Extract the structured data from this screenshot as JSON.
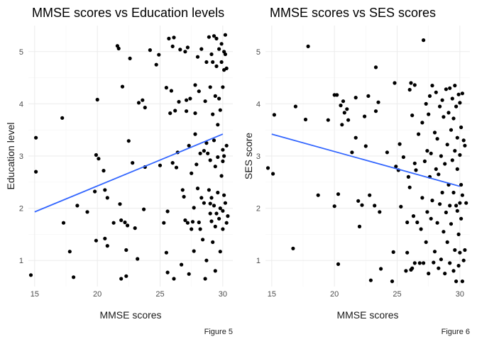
{
  "chart_data": [
    {
      "type": "scatter",
      "title": "MMSE scores vs Education levels",
      "xlabel": "MMSE scores",
      "ylabel": "Education level",
      "caption": "Figure 5",
      "xlim": [
        14.5,
        30.8
      ],
      "ylim": [
        0.5,
        5.5
      ],
      "xticks": [
        "15",
        "20",
        "25",
        "30"
      ],
      "yticks": [
        "1",
        "2",
        "3",
        "4",
        "5"
      ],
      "grid": true,
      "point_color": "#000000",
      "trend_color": "#3366ff",
      "trend_line": {
        "x": [
          15,
          30
        ],
        "y": [
          1.93,
          3.42
        ]
      },
      "points": [
        [
          14.7,
          0.72
        ],
        [
          15.1,
          3.35
        ],
        [
          15.1,
          2.7
        ],
        [
          17.2,
          3.73
        ],
        [
          17.3,
          1.72
        ],
        [
          17.8,
          1.17
        ],
        [
          18.1,
          0.68
        ],
        [
          18.4,
          2.05
        ],
        [
          19.2,
          1.93
        ],
        [
          19.8,
          2.32
        ],
        [
          19.9,
          1.38
        ],
        [
          19.9,
          3.02
        ],
        [
          20.0,
          4.08
        ],
        [
          20.1,
          2.95
        ],
        [
          20.5,
          2.72
        ],
        [
          20.6,
          2.35
        ],
        [
          20.6,
          1.42
        ],
        [
          20.8,
          2.2
        ],
        [
          20.8,
          1.28
        ],
        [
          21.3,
          1.72
        ],
        [
          21.6,
          5.11
        ],
        [
          21.7,
          5.06
        ],
        [
          21.8,
          2.08
        ],
        [
          21.9,
          1.77
        ],
        [
          21.9,
          0.65
        ],
        [
          22.0,
          4.33
        ],
        [
          22.2,
          1.73
        ],
        [
          22.3,
          1.2
        ],
        [
          22.3,
          0.7
        ],
        [
          22.4,
          1.67
        ],
        [
          22.5,
          3.29
        ],
        [
          22.6,
          4.87
        ],
        [
          22.8,
          2.87
        ],
        [
          23.0,
          1.62
        ],
        [
          23.2,
          1.03
        ],
        [
          23.3,
          4.02
        ],
        [
          23.6,
          4.07
        ],
        [
          23.7,
          1.98
        ],
        [
          23.8,
          3.93
        ],
        [
          23.8,
          2.79
        ],
        [
          24.2,
          5.03
        ],
        [
          24.7,
          4.75
        ],
        [
          24.9,
          4.94
        ],
        [
          25.0,
          2.82
        ],
        [
          25.3,
          1.72
        ],
        [
          25.5,
          1.15
        ],
        [
          25.5,
          4.31
        ],
        [
          25.6,
          1.94
        ],
        [
          25.6,
          0.77
        ],
        [
          25.7,
          5.25
        ],
        [
          25.8,
          3.82
        ],
        [
          25.9,
          4.25
        ],
        [
          26.0,
          5.1
        ],
        [
          26.0,
          2.87
        ],
        [
          26.1,
          0.65
        ],
        [
          26.1,
          5.27
        ],
        [
          26.2,
          3.87
        ],
        [
          26.3,
          2.78
        ],
        [
          26.4,
          3.07
        ],
        [
          26.5,
          4.04
        ],
        [
          26.6,
          5.04
        ],
        [
          26.7,
          0.92
        ],
        [
          26.8,
          2.35
        ],
        [
          26.9,
          2.22
        ],
        [
          27.0,
          1.77
        ],
        [
          27.0,
          5.0
        ],
        [
          27.1,
          4.07
        ],
        [
          27.1,
          3.86
        ],
        [
          27.2,
          1.72
        ],
        [
          27.2,
          5.08
        ],
        [
          27.3,
          0.74
        ],
        [
          27.3,
          3.2
        ],
        [
          27.4,
          4.1
        ],
        [
          27.5,
          1.6
        ],
        [
          27.5,
          2.67
        ],
        [
          27.6,
          1.74
        ],
        [
          27.7,
          1.18
        ],
        [
          27.7,
          2.01
        ],
        [
          27.8,
          3.42
        ],
        [
          27.8,
          3.82
        ],
        [
          27.8,
          4.36
        ],
        [
          27.9,
          2.84
        ],
        [
          28.0,
          2.38
        ],
        [
          28.0,
          4.9
        ],
        [
          28.1,
          1.73
        ],
        [
          28.1,
          4.24
        ],
        [
          28.2,
          3.05
        ],
        [
          28.2,
          1.6
        ],
        [
          28.3,
          2.2
        ],
        [
          28.3,
          5.05
        ],
        [
          28.4,
          1.4
        ],
        [
          28.5,
          2.1
        ],
        [
          28.5,
          3.1
        ],
        [
          28.6,
          4.05
        ],
        [
          28.6,
          0.65
        ],
        [
          28.7,
          4.8
        ],
        [
          28.7,
          1.0
        ],
        [
          28.7,
          3.25
        ],
        [
          28.8,
          3.05
        ],
        [
          28.9,
          2.35
        ],
        [
          28.9,
          5.28
        ],
        [
          29.0,
          1.9
        ],
        [
          29.0,
          4.32
        ],
        [
          29.0,
          2.09
        ],
        [
          29.0,
          2.92
        ],
        [
          29.1,
          1.75
        ],
        [
          29.1,
          4.95
        ],
        [
          29.1,
          2.2
        ],
        [
          29.2,
          4.8
        ],
        [
          29.2,
          3.8
        ],
        [
          29.2,
          1.35
        ],
        [
          29.3,
          5.3
        ],
        [
          29.3,
          3.3
        ],
        [
          29.3,
          2.05
        ],
        [
          29.4,
          1.65
        ],
        [
          29.4,
          2.8
        ],
        [
          29.4,
          4.15
        ],
        [
          29.4,
          0.8
        ],
        [
          29.5,
          5.25
        ],
        [
          29.5,
          1.9
        ],
        [
          29.5,
          4.72
        ],
        [
          29.6,
          2.98
        ],
        [
          29.6,
          2.3
        ],
        [
          29.6,
          3.6
        ],
        [
          29.7,
          5.05
        ],
        [
          29.7,
          4.1
        ],
        [
          29.7,
          1.8
        ],
        [
          29.8,
          1.17
        ],
        [
          29.8,
          2.0
        ],
        [
          29.8,
          3.88
        ],
        [
          29.9,
          4.8
        ],
        [
          29.9,
          2.62
        ],
        [
          29.9,
          5.15
        ],
        [
          30.0,
          4.32
        ],
        [
          30.0,
          1.95
        ],
        [
          30.0,
          1.6
        ],
        [
          30.0,
          3.12
        ],
        [
          30.0,
          2.9
        ],
        [
          30.1,
          4.65
        ],
        [
          30.1,
          3.0
        ],
        [
          30.1,
          5.0
        ],
        [
          30.1,
          2.25
        ],
        [
          30.2,
          4.95
        ],
        [
          30.2,
          5.32
        ],
        [
          30.2,
          2.1
        ],
        [
          30.3,
          1.72
        ],
        [
          30.3,
          3.2
        ],
        [
          30.3,
          4.68
        ],
        [
          30.4,
          1.85
        ]
      ]
    },
    {
      "type": "scatter",
      "title": "MMSE scores vs SES scores",
      "xlabel": "MMSE scores",
      "ylabel": "SES score",
      "caption": "Figure 6",
      "xlim": [
        14.5,
        30.8
      ],
      "ylim": [
        0.5,
        5.5
      ],
      "xticks": [
        "15",
        "20",
        "25",
        "30"
      ],
      "yticks": [
        "1",
        "2",
        "3",
        "4",
        "5"
      ],
      "grid": true,
      "point_color": "#000000",
      "trend_color": "#3366ff",
      "trend_line": {
        "x": [
          15,
          30
        ],
        "y": [
          3.42,
          2.42
        ]
      },
      "points": [
        [
          14.7,
          2.77
        ],
        [
          15.1,
          2.66
        ],
        [
          15.2,
          3.79
        ],
        [
          16.7,
          1.23
        ],
        [
          16.9,
          3.95
        ],
        [
          17.7,
          3.7
        ],
        [
          17.9,
          5.1
        ],
        [
          18.7,
          2.25
        ],
        [
          19.5,
          3.69
        ],
        [
          20.0,
          2.04
        ],
        [
          20.0,
          4.17
        ],
        [
          20.2,
          4.17
        ],
        [
          20.3,
          0.93
        ],
        [
          20.3,
          2.27
        ],
        [
          20.5,
          3.97
        ],
        [
          20.6,
          3.6
        ],
        [
          20.7,
          4.05
        ],
        [
          20.8,
          3.83
        ],
        [
          21.0,
          3.9
        ],
        [
          21.1,
          3.69
        ],
        [
          21.4,
          3.07
        ],
        [
          21.7,
          3.35
        ],
        [
          21.7,
          4.12
        ],
        [
          21.9,
          2.14
        ],
        [
          22.0,
          1.65
        ],
        [
          22.2,
          2.06
        ],
        [
          22.4,
          3.76
        ],
        [
          22.5,
          3.19
        ],
        [
          22.7,
          4.15
        ],
        [
          22.8,
          2.25
        ],
        [
          22.9,
          0.62
        ],
        [
          23.2,
          2.05
        ],
        [
          23.3,
          4.7
        ],
        [
          23.3,
          3.86
        ],
        [
          23.5,
          4.03
        ],
        [
          23.6,
          1.93
        ],
        [
          23.7,
          0.84
        ],
        [
          24.2,
          3.07
        ],
        [
          24.6,
          0.6
        ],
        [
          24.7,
          1.16
        ],
        [
          24.8,
          4.4
        ],
        [
          24.9,
          2.8
        ],
        [
          25.1,
          2.73
        ],
        [
          25.2,
          3.23
        ],
        [
          25.3,
          2.03
        ],
        [
          25.5,
          2.98
        ],
        [
          25.7,
          0.8
        ],
        [
          25.8,
          1.15
        ],
        [
          25.8,
          1.73
        ],
        [
          25.9,
          2.6
        ],
        [
          26.0,
          4.27
        ],
        [
          26.0,
          2.4
        ],
        [
          26.1,
          0.82
        ],
        [
          26.1,
          4.4
        ],
        [
          26.2,
          3.78
        ],
        [
          26.2,
          0.85
        ],
        [
          26.3,
          1.85
        ],
        [
          26.4,
          2.86
        ],
        [
          26.4,
          4.36
        ],
        [
          26.4,
          0.95
        ],
        [
          26.5,
          2.73
        ],
        [
          26.6,
          1.73
        ],
        [
          26.7,
          3.42
        ],
        [
          26.8,
          0.95
        ],
        [
          26.9,
          1.6
        ],
        [
          27.0,
          3.64
        ],
        [
          27.0,
          2.2
        ],
        [
          27.1,
          5.22
        ],
        [
          27.1,
          0.95
        ],
        [
          27.2,
          2.9
        ],
        [
          27.3,
          4.0
        ],
        [
          27.3,
          1.35
        ],
        [
          27.4,
          3.1
        ],
        [
          27.4,
          1.93
        ],
        [
          27.5,
          3.8
        ],
        [
          27.5,
          0.75
        ],
        [
          27.6,
          2.6
        ],
        [
          27.6,
          4.15
        ],
        [
          27.7,
          1.8
        ],
        [
          27.7,
          3.05
        ],
        [
          27.8,
          2.15
        ],
        [
          27.8,
          4.35
        ],
        [
          27.9,
          0.96
        ],
        [
          28.0,
          1.17
        ],
        [
          28.0,
          3.45
        ],
        [
          28.1,
          2.75
        ],
        [
          28.1,
          4.22
        ],
        [
          28.2,
          1.72
        ],
        [
          28.2,
          3.33
        ],
        [
          28.3,
          0.85
        ],
        [
          28.3,
          2.65
        ],
        [
          28.4,
          2.08
        ],
        [
          28.4,
          3.95
        ],
        [
          28.5,
          1.02
        ],
        [
          28.5,
          3.0
        ],
        [
          28.6,
          4.07
        ],
        [
          28.6,
          2.3
        ],
        [
          28.7,
          1.55
        ],
        [
          28.7,
          3.75
        ],
        [
          28.8,
          0.75
        ],
        [
          28.8,
          2.85
        ],
        [
          28.9,
          1.92
        ],
        [
          28.9,
          4.28
        ],
        [
          29.0,
          3.22
        ],
        [
          29.0,
          1.35
        ],
        [
          29.1,
          2.45
        ],
        [
          29.1,
          3.83
        ],
        [
          29.2,
          0.95
        ],
        [
          29.2,
          4.3
        ],
        [
          29.2,
          2.05
        ],
        [
          29.3,
          3.5
        ],
        [
          29.3,
          1.7
        ],
        [
          29.4,
          2.92
        ],
        [
          29.4,
          4.1
        ],
        [
          29.5,
          0.8
        ],
        [
          29.5,
          2.3
        ],
        [
          29.5,
          3.72
        ],
        [
          29.6,
          1.2
        ],
        [
          29.6,
          3.1
        ],
        [
          29.6,
          4.35
        ],
        [
          29.7,
          2.05
        ],
        [
          29.7,
          0.6
        ],
        [
          29.7,
          3.95
        ],
        [
          29.8,
          1.95
        ],
        [
          29.8,
          2.75
        ],
        [
          29.8,
          3.35
        ],
        [
          29.9,
          4.18
        ],
        [
          29.9,
          1.5
        ],
        [
          29.9,
          0.9
        ],
        [
          30.0,
          2.1
        ],
        [
          30.0,
          3.02
        ],
        [
          30.0,
          4.02
        ],
        [
          30.0,
          1.15
        ],
        [
          30.1,
          2.45
        ],
        [
          30.1,
          3.55
        ],
        [
          30.1,
          1.8
        ],
        [
          30.2,
          4.2
        ],
        [
          30.2,
          0.6
        ],
        [
          30.2,
          2.25
        ],
        [
          30.3,
          3.3
        ],
        [
          30.3,
          1.0
        ],
        [
          30.4,
          1.2
        ],
        [
          30.4,
          3.2
        ],
        [
          30.5,
          2.1
        ]
      ]
    }
  ]
}
